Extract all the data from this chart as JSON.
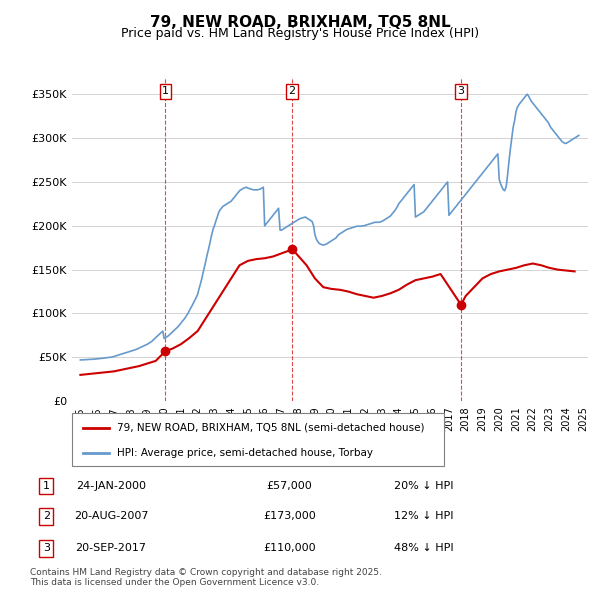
{
  "title": "79, NEW ROAD, BRIXHAM, TQ5 8NL",
  "subtitle": "Price paid vs. HM Land Registry's House Price Index (HPI)",
  "property_label": "79, NEW ROAD, BRIXHAM, TQ5 8NL (semi-detached house)",
  "hpi_label": "HPI: Average price, semi-detached house, Torbay",
  "property_color": "#cc0000",
  "hpi_color": "#6699cc",
  "ylim": [
    0,
    370000
  ],
  "yticks": [
    0,
    50000,
    100000,
    150000,
    200000,
    250000,
    300000,
    350000
  ],
  "footer": "Contains HM Land Registry data © Crown copyright and database right 2025.\nThis data is licensed under the Open Government Licence v3.0.",
  "sales": [
    {
      "num": 1,
      "date": "24-JAN-2000",
      "price": 57000,
      "hpi_diff": "20% ↓ HPI",
      "year": 2000.07
    },
    {
      "num": 2,
      "date": "20-AUG-2007",
      "price": 173000,
      "hpi_diff": "12% ↓ HPI",
      "year": 2007.64
    },
    {
      "num": 3,
      "date": "20-SEP-2017",
      "price": 110000,
      "hpi_diff": "48% ↓ HPI",
      "year": 2017.72
    }
  ],
  "hpi_data": {
    "years": [
      1995.0,
      1995.08,
      1995.17,
      1995.25,
      1995.33,
      1995.42,
      1995.5,
      1995.58,
      1995.67,
      1995.75,
      1995.83,
      1995.92,
      1996.0,
      1996.08,
      1996.17,
      1996.25,
      1996.33,
      1996.42,
      1996.5,
      1996.58,
      1996.67,
      1996.75,
      1996.83,
      1996.92,
      1997.0,
      1997.08,
      1997.17,
      1997.25,
      1997.33,
      1997.42,
      1997.5,
      1997.58,
      1997.67,
      1997.75,
      1997.83,
      1997.92,
      1998.0,
      1998.08,
      1998.17,
      1998.25,
      1998.33,
      1998.42,
      1998.5,
      1998.58,
      1998.67,
      1998.75,
      1998.83,
      1998.92,
      1999.0,
      1999.08,
      1999.17,
      1999.25,
      1999.33,
      1999.42,
      1999.5,
      1999.58,
      1999.67,
      1999.75,
      1999.83,
      1999.92,
      2000.0,
      2000.08,
      2000.17,
      2000.25,
      2000.33,
      2000.42,
      2000.5,
      2000.58,
      2000.67,
      2000.75,
      2000.83,
      2000.92,
      2001.0,
      2001.08,
      2001.17,
      2001.25,
      2001.33,
      2001.42,
      2001.5,
      2001.58,
      2001.67,
      2001.75,
      2001.83,
      2001.92,
      2002.0,
      2002.08,
      2002.17,
      2002.25,
      2002.33,
      2002.42,
      2002.5,
      2002.58,
      2002.67,
      2002.75,
      2002.83,
      2002.92,
      2003.0,
      2003.08,
      2003.17,
      2003.25,
      2003.33,
      2003.42,
      2003.5,
      2003.58,
      2003.67,
      2003.75,
      2003.83,
      2003.92,
      2004.0,
      2004.08,
      2004.17,
      2004.25,
      2004.33,
      2004.42,
      2004.5,
      2004.58,
      2004.67,
      2004.75,
      2004.83,
      2004.92,
      2005.0,
      2005.08,
      2005.17,
      2005.25,
      2005.33,
      2005.42,
      2005.5,
      2005.58,
      2005.67,
      2005.75,
      2005.83,
      2005.92,
      2006.0,
      2006.08,
      2006.17,
      2006.25,
      2006.33,
      2006.42,
      2006.5,
      2006.58,
      2006.67,
      2006.75,
      2006.83,
      2006.92,
      2007.0,
      2007.08,
      2007.17,
      2007.25,
      2007.33,
      2007.42,
      2007.5,
      2007.58,
      2007.67,
      2007.75,
      2007.83,
      2007.92,
      2008.0,
      2008.08,
      2008.17,
      2008.25,
      2008.33,
      2008.42,
      2008.5,
      2008.58,
      2008.67,
      2008.75,
      2008.83,
      2008.92,
      2009.0,
      2009.08,
      2009.17,
      2009.25,
      2009.33,
      2009.42,
      2009.5,
      2009.58,
      2009.67,
      2009.75,
      2009.83,
      2009.92,
      2010.0,
      2010.08,
      2010.17,
      2010.25,
      2010.33,
      2010.42,
      2010.5,
      2010.58,
      2010.67,
      2010.75,
      2010.83,
      2010.92,
      2011.0,
      2011.08,
      2011.17,
      2011.25,
      2011.33,
      2011.42,
      2011.5,
      2011.58,
      2011.67,
      2011.75,
      2011.83,
      2011.92,
      2012.0,
      2012.08,
      2012.17,
      2012.25,
      2012.33,
      2012.42,
      2012.5,
      2012.58,
      2012.67,
      2012.75,
      2012.83,
      2012.92,
      2013.0,
      2013.08,
      2013.17,
      2013.25,
      2013.33,
      2013.42,
      2013.5,
      2013.58,
      2013.67,
      2013.75,
      2013.83,
      2013.92,
      2014.0,
      2014.08,
      2014.17,
      2014.25,
      2014.33,
      2014.42,
      2014.5,
      2014.58,
      2014.67,
      2014.75,
      2014.83,
      2014.92,
      2015.0,
      2015.08,
      2015.17,
      2015.25,
      2015.33,
      2015.42,
      2015.5,
      2015.58,
      2015.67,
      2015.75,
      2015.83,
      2015.92,
      2016.0,
      2016.08,
      2016.17,
      2016.25,
      2016.33,
      2016.42,
      2016.5,
      2016.58,
      2016.67,
      2016.75,
      2016.83,
      2016.92,
      2017.0,
      2017.08,
      2017.17,
      2017.25,
      2017.33,
      2017.42,
      2017.5,
      2017.58,
      2017.67,
      2017.75,
      2017.83,
      2017.92,
      2018.0,
      2018.08,
      2018.17,
      2018.25,
      2018.33,
      2018.42,
      2018.5,
      2018.58,
      2018.67,
      2018.75,
      2018.83,
      2018.92,
      2019.0,
      2019.08,
      2019.17,
      2019.25,
      2019.33,
      2019.42,
      2019.5,
      2019.58,
      2019.67,
      2019.75,
      2019.83,
      2019.92,
      2020.0,
      2020.08,
      2020.17,
      2020.25,
      2020.33,
      2020.42,
      2020.5,
      2020.58,
      2020.67,
      2020.75,
      2020.83,
      2020.92,
      2021.0,
      2021.08,
      2021.17,
      2021.25,
      2021.33,
      2021.42,
      2021.5,
      2021.58,
      2021.67,
      2021.75,
      2021.83,
      2021.92,
      2022.0,
      2022.08,
      2022.17,
      2022.25,
      2022.33,
      2022.42,
      2022.5,
      2022.58,
      2022.67,
      2022.75,
      2022.83,
      2022.92,
      2023.0,
      2023.08,
      2023.17,
      2023.25,
      2023.33,
      2023.42,
      2023.5,
      2023.58,
      2023.67,
      2023.75,
      2023.83,
      2023.92,
      2024.0,
      2024.08,
      2024.17,
      2024.25,
      2024.33,
      2024.42,
      2024.5,
      2024.58,
      2024.67,
      2024.75
    ],
    "values": [
      47000,
      47200,
      47100,
      47300,
      47500,
      47400,
      47600,
      47800,
      47700,
      47900,
      48000,
      48100,
      48300,
      48500,
      48700,
      48900,
      49000,
      49200,
      49400,
      49600,
      49800,
      50000,
      50200,
      50500,
      51000,
      51500,
      52000,
      52500,
      53000,
      53500,
      54000,
      54500,
      55000,
      55500,
      56000,
      56500,
      57000,
      57500,
      58000,
      58500,
      59000,
      59800,
      60500,
      61200,
      62000,
      62800,
      63500,
      64200,
      65000,
      66000,
      67000,
      68000,
      69500,
      71000,
      72500,
      74000,
      75500,
      77000,
      78500,
      80000,
      71500,
      72500,
      73500,
      74500,
      76000,
      77500,
      79000,
      80500,
      82000,
      83500,
      85000,
      87000,
      89000,
      91000,
      93000,
      95000,
      97500,
      100000,
      103000,
      106000,
      109000,
      112000,
      115000,
      118500,
      122000,
      128000,
      134000,
      140000,
      147000,
      154000,
      161000,
      168000,
      175000,
      182000,
      189000,
      196000,
      200000,
      205000,
      210000,
      215000,
      218000,
      220000,
      222000,
      223000,
      224000,
      225000,
      226000,
      227000,
      228000,
      230000,
      232000,
      234000,
      236000,
      238000,
      240000,
      241000,
      242000,
      243000,
      243500,
      244000,
      243000,
      242500,
      242000,
      241500,
      241000,
      241000,
      241000,
      241000,
      241500,
      242000,
      243000,
      244000,
      200000,
      202000,
      204000,
      206000,
      208000,
      210000,
      212000,
      214000,
      216000,
      218000,
      220000,
      195000,
      195000,
      196000,
      197000,
      198000,
      199000,
      200000,
      201000,
      202000,
      203000,
      204000,
      205000,
      206000,
      207000,
      208000,
      208500,
      209000,
      209500,
      210000,
      209000,
      208000,
      207000,
      206000,
      205000,
      200000,
      190000,
      185000,
      182000,
      180000,
      179000,
      178500,
      178000,
      178500,
      179000,
      180000,
      181000,
      182000,
      183000,
      184000,
      185000,
      186000,
      188000,
      190000,
      191000,
      192000,
      193000,
      194000,
      195000,
      196000,
      196500,
      197000,
      197500,
      198000,
      198500,
      199000,
      199500,
      199500,
      199500,
      199500,
      200000,
      200000,
      200500,
      201000,
      201500,
      202000,
      202500,
      203000,
      203500,
      204000,
      204000,
      204000,
      204000,
      204500,
      205000,
      206000,
      207000,
      208000,
      209000,
      210000,
      211000,
      213000,
      215000,
      217000,
      219000,
      222000,
      225000,
      227000,
      229000,
      231000,
      233000,
      235000,
      237000,
      239000,
      241000,
      243000,
      245000,
      247000,
      210000,
      211000,
      212000,
      213000,
      214000,
      215000,
      216000,
      218000,
      220000,
      222000,
      224000,
      226000,
      228000,
      230000,
      232000,
      234000,
      236000,
      238000,
      240000,
      242000,
      244000,
      246000,
      248000,
      250000,
      212000,
      214000,
      216000,
      218000,
      220000,
      222000,
      224000,
      226000,
      228000,
      230000,
      232000,
      234000,
      236000,
      238000,
      240000,
      242000,
      244000,
      246000,
      248000,
      250000,
      252000,
      254000,
      256000,
      258000,
      260000,
      262000,
      264000,
      266000,
      268000,
      270000,
      272000,
      274000,
      276000,
      278000,
      280000,
      282000,
      253000,
      248000,
      244000,
      241000,
      240000,
      245000,
      258000,
      273000,
      288000,
      300000,
      312000,
      320000,
      330000,
      335000,
      338000,
      340000,
      342000,
      344000,
      346000,
      348000,
      350000,
      348000,
      345000,
      342000,
      340000,
      338000,
      336000,
      334000,
      332000,
      330000,
      328000,
      326000,
      324000,
      322000,
      320000,
      318000,
      315000,
      312000,
      310000,
      308000,
      306000,
      304000,
      302000,
      300000,
      298000,
      296000,
      295000,
      294000,
      294000,
      295000,
      296000,
      297000,
      298000,
      299000,
      300000,
      301000,
      302000,
      303000
    ]
  },
  "property_data": {
    "years": [
      1995.0,
      1995.5,
      1996.0,
      1996.5,
      1997.0,
      1997.5,
      1998.0,
      1998.5,
      1999.0,
      1999.5,
      2000.07,
      2000.5,
      2001.0,
      2001.5,
      2002.0,
      2002.5,
      2003.0,
      2003.5,
      2004.0,
      2004.5,
      2005.0,
      2005.5,
      2006.0,
      2006.5,
      2007.64,
      2007.9,
      2008.5,
      2009.0,
      2009.5,
      2010.0,
      2010.5,
      2011.0,
      2011.5,
      2012.0,
      2012.5,
      2013.0,
      2013.5,
      2014.0,
      2014.5,
      2015.0,
      2015.5,
      2016.0,
      2016.5,
      2017.72,
      2018.0,
      2018.5,
      2019.0,
      2019.5,
      2020.0,
      2020.5,
      2021.0,
      2021.5,
      2022.0,
      2022.5,
      2023.0,
      2023.5,
      2024.0,
      2024.5
    ],
    "values": [
      30000,
      31000,
      32000,
      33000,
      34000,
      36000,
      38000,
      40000,
      43000,
      46000,
      57000,
      60000,
      65000,
      72000,
      80000,
      95000,
      110000,
      125000,
      140000,
      155000,
      160000,
      162000,
      163000,
      165000,
      173000,
      168000,
      155000,
      140000,
      130000,
      128000,
      127000,
      125000,
      122000,
      120000,
      118000,
      120000,
      123000,
      127000,
      133000,
      138000,
      140000,
      142000,
      145000,
      110000,
      120000,
      130000,
      140000,
      145000,
      148000,
      150000,
      152000,
      155000,
      157000,
      155000,
      152000,
      150000,
      149000,
      148000
    ]
  }
}
